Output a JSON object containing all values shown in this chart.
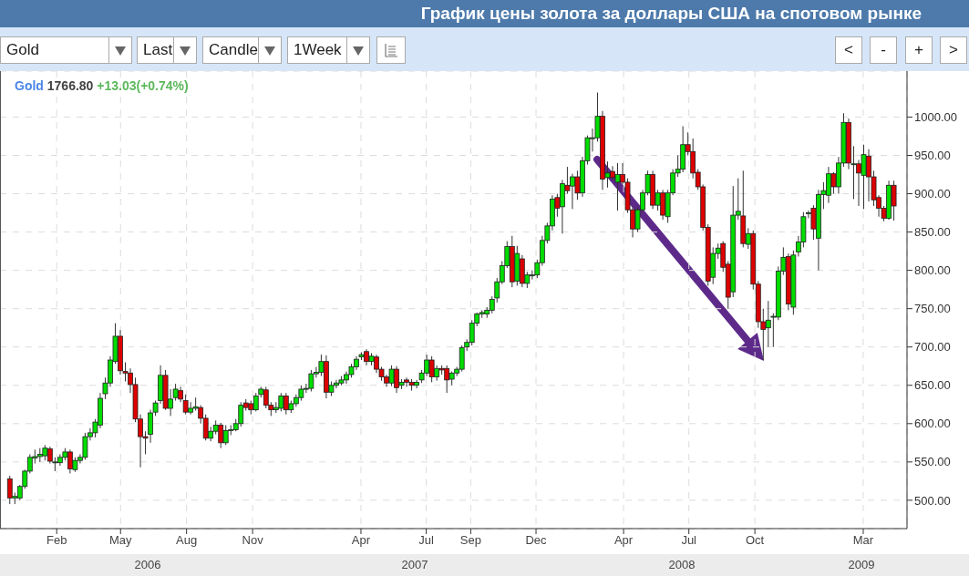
{
  "chart_data": {
    "type": "candlestick",
    "title": "График цены золота за доллары США на спотовом рынке",
    "annotations": [
      "Gold",
      "Last",
      "Candle",
      "1Week",
      "<",
      "-",
      "+",
      ">",
      "Gold",
      "1766.80",
      "+13.03(+0.74%)",
      "2006",
      "2007",
      "2008",
      "2009"
    ],
    "x": [
      "2005-11-28",
      "2005-12-05",
      "2005-12-12",
      "2005-12-19",
      "2005-12-26",
      "2006-01-02",
      "2006-01-09",
      "2006-01-16",
      "2006-01-23",
      "2006-01-30",
      "2006-02-06",
      "2006-02-13",
      "2006-02-20",
      "2006-02-27",
      "2006-03-06",
      "2006-03-13",
      "2006-03-20",
      "2006-03-27",
      "2006-04-03",
      "2006-04-10",
      "2006-04-17",
      "2006-04-24",
      "2006-05-01",
      "2006-05-08",
      "2006-05-15",
      "2006-05-22",
      "2006-05-29",
      "2006-06-05",
      "2006-06-12",
      "2006-06-19",
      "2006-06-26",
      "2006-07-03",
      "2006-07-10",
      "2006-07-17",
      "2006-07-24",
      "2006-07-31",
      "2006-08-07",
      "2006-08-14",
      "2006-08-21",
      "2006-08-28",
      "2006-09-04",
      "2006-09-11",
      "2006-09-18",
      "2006-09-25",
      "2006-10-02",
      "2006-10-09",
      "2006-10-16",
      "2006-10-23",
      "2006-10-30",
      "2006-11-06",
      "2006-11-13",
      "2006-11-20",
      "2006-11-27",
      "2006-12-04",
      "2006-12-11",
      "2006-12-18",
      "2006-12-25",
      "2007-01-01",
      "2007-01-08",
      "2007-01-15",
      "2007-01-22",
      "2007-01-29",
      "2007-02-05",
      "2007-02-12",
      "2007-02-19",
      "2007-02-26",
      "2007-03-05",
      "2007-03-12",
      "2007-03-19",
      "2007-03-26",
      "2007-04-02",
      "2007-04-09",
      "2007-04-16",
      "2007-04-23",
      "2007-04-30",
      "2007-05-07",
      "2007-05-14",
      "2007-05-21",
      "2007-05-28",
      "2007-06-04",
      "2007-06-11",
      "2007-06-18",
      "2007-06-25",
      "2007-07-02",
      "2007-07-09",
      "2007-07-16",
      "2007-07-23",
      "2007-07-30",
      "2007-08-06",
      "2007-08-13",
      "2007-08-20",
      "2007-08-27",
      "2007-09-03",
      "2007-09-10",
      "2007-09-17",
      "2007-09-24",
      "2007-10-01",
      "2007-10-08",
      "2007-10-15",
      "2007-10-22",
      "2007-10-29",
      "2007-11-05",
      "2007-11-12",
      "2007-11-19",
      "2007-11-26",
      "2007-12-03",
      "2007-12-10",
      "2007-12-17",
      "2007-12-24",
      "2007-12-31",
      "2008-01-07",
      "2008-01-14",
      "2008-01-21",
      "2008-01-28",
      "2008-02-04",
      "2008-02-11",
      "2008-02-18",
      "2008-02-25",
      "2008-03-03",
      "2008-03-10",
      "2008-03-17",
      "2008-03-24",
      "2008-03-31",
      "2008-04-07",
      "2008-04-14",
      "2008-04-21",
      "2008-04-28",
      "2008-05-05",
      "2008-05-12",
      "2008-05-19",
      "2008-05-26",
      "2008-06-02",
      "2008-06-09",
      "2008-06-16",
      "2008-06-23",
      "2008-06-30",
      "2008-07-07",
      "2008-07-14",
      "2008-07-21",
      "2008-07-28",
      "2008-08-04",
      "2008-08-11",
      "2008-08-18",
      "2008-08-25",
      "2008-09-01",
      "2008-09-08",
      "2008-09-15",
      "2008-09-22",
      "2008-09-29",
      "2008-10-06",
      "2008-10-13",
      "2008-10-20",
      "2008-10-27",
      "2008-11-03",
      "2008-11-10",
      "2008-11-17",
      "2008-11-24",
      "2008-12-01",
      "2008-12-08",
      "2008-12-15",
      "2008-12-22",
      "2008-12-29",
      "2009-01-05",
      "2009-01-12",
      "2009-01-19",
      "2009-01-26",
      "2009-02-02",
      "2009-02-09",
      "2009-02-16",
      "2009-02-23",
      "2009-03-02",
      "2009-03-09",
      "2009-03-16",
      "2009-03-23",
      "2009-03-30",
      "2009-04-06",
      "2009-04-13"
    ],
    "ohlc": [
      [
        528,
        532,
        495,
        503
      ],
      [
        503,
        510,
        495,
        505
      ],
      [
        503,
        520,
        500,
        518
      ],
      [
        518,
        540,
        515,
        538
      ],
      [
        538,
        560,
        535,
        556
      ],
      [
        555,
        566,
        548,
        557
      ],
      [
        557,
        568,
        550,
        560
      ],
      [
        558,
        572,
        552,
        568
      ],
      [
        567,
        570,
        548,
        551
      ],
      [
        549,
        556,
        538,
        550
      ],
      [
        549,
        560,
        545,
        556
      ],
      [
        556,
        568,
        552,
        563
      ],
      [
        563,
        566,
        535,
        541
      ],
      [
        540,
        556,
        537,
        552
      ],
      [
        552,
        560,
        548,
        556
      ],
      [
        556,
        588,
        553,
        583
      ],
      [
        583,
        594,
        578,
        588
      ],
      [
        588,
        606,
        582,
        602
      ],
      [
        598,
        640,
        594,
        633
      ],
      [
        639,
        660,
        632,
        653
      ],
      [
        653,
        688,
        648,
        683
      ],
      [
        681,
        731,
        678,
        714
      ],
      [
        714,
        722,
        664,
        669
      ],
      [
        668,
        680,
        655,
        666
      ],
      [
        666,
        672,
        640,
        651
      ],
      [
        651,
        660,
        602,
        606
      ],
      [
        606,
        612,
        543,
        583
      ],
      [
        583,
        590,
        560,
        581
      ],
      [
        586,
        618,
        575,
        614
      ],
      [
        615,
        630,
        610,
        627
      ],
      [
        630,
        676,
        626,
        663
      ],
      [
        663,
        670,
        618,
        620
      ],
      [
        620,
        645,
        610,
        632
      ],
      [
        634,
        652,
        630,
        645
      ],
      [
        643,
        648,
        628,
        632
      ],
      [
        630,
        638,
        612,
        615
      ],
      [
        615,
        628,
        612,
        620
      ],
      [
        620,
        634,
        617,
        622
      ],
      [
        621,
        624,
        600,
        607
      ],
      [
        607,
        612,
        578,
        581
      ],
      [
        581,
        596,
        577,
        590
      ],
      [
        590,
        604,
        586,
        598
      ],
      [
        598,
        601,
        568,
        575
      ],
      [
        575,
        598,
        572,
        591
      ],
      [
        591,
        598,
        585,
        592
      ],
      [
        592,
        606,
        590,
        600
      ],
      [
        600,
        628,
        596,
        624
      ],
      [
        627,
        632,
        617,
        621
      ],
      [
        626,
        630,
        612,
        618
      ],
      [
        618,
        640,
        616,
        636
      ],
      [
        638,
        648,
        634,
        645
      ],
      [
        644,
        648,
        620,
        624
      ],
      [
        624,
        628,
        610,
        618
      ],
      [
        618,
        628,
        614,
        621
      ],
      [
        620,
        640,
        616,
        636
      ],
      [
        636,
        640,
        612,
        618
      ],
      [
        618,
        630,
        614,
        626
      ],
      [
        626,
        638,
        622,
        634
      ],
      [
        634,
        650,
        630,
        645
      ],
      [
        645,
        652,
        640,
        646
      ],
      [
        646,
        670,
        642,
        665
      ],
      [
        665,
        674,
        660,
        667
      ],
      [
        667,
        690,
        662,
        681
      ],
      [
        681,
        689,
        633,
        641
      ],
      [
        641,
        655,
        636,
        650
      ],
      [
        650,
        657,
        646,
        653
      ],
      [
        653,
        662,
        650,
        657
      ],
      [
        657,
        668,
        652,
        664
      ],
      [
        664,
        678,
        660,
        674
      ],
      [
        674,
        688,
        670,
        684
      ],
      [
        687,
        693,
        683,
        690
      ],
      [
        694,
        697,
        676,
        681
      ],
      [
        681,
        692,
        676,
        688
      ],
      [
        687,
        690,
        666,
        671
      ],
      [
        671,
        674,
        656,
        661
      ],
      [
        661,
        664,
        648,
        653
      ],
      [
        653,
        676,
        649,
        671
      ],
      [
        671,
        675,
        640,
        647
      ],
      [
        650,
        658,
        645,
        654
      ],
      [
        657,
        660,
        648,
        654
      ],
      [
        654,
        658,
        643,
        650
      ],
      [
        650,
        657,
        646,
        654
      ],
      [
        657,
        670,
        653,
        666
      ],
      [
        666,
        690,
        662,
        683
      ],
      [
        683,
        688,
        654,
        661
      ],
      [
        661,
        676,
        656,
        672
      ],
      [
        672,
        676,
        664,
        670
      ],
      [
        672,
        676,
        640,
        657
      ],
      [
        658,
        668,
        650,
        666
      ],
      [
        666,
        674,
        662,
        671
      ],
      [
        671,
        702,
        668,
        699
      ],
      [
        700,
        710,
        695,
        706
      ],
      [
        706,
        735,
        702,
        731
      ],
      [
        731,
        745,
        727,
        743
      ],
      [
        743,
        748,
        738,
        745
      ],
      [
        743,
        752,
        738,
        748
      ],
      [
        748,
        766,
        744,
        762
      ],
      [
        764,
        790,
        758,
        785
      ],
      [
        785,
        812,
        782,
        806
      ],
      [
        806,
        838,
        803,
        831
      ],
      [
        831,
        845,
        778,
        785
      ],
      [
        786,
        832,
        780,
        822
      ],
      [
        815,
        820,
        778,
        783
      ],
      [
        783,
        798,
        777,
        794
      ],
      [
        794,
        800,
        788,
        794
      ],
      [
        794,
        814,
        790,
        810
      ],
      [
        810,
        845,
        806,
        839
      ],
      [
        839,
        862,
        835,
        858
      ],
      [
        858,
        898,
        852,
        893
      ],
      [
        895,
        900,
        870,
        881
      ],
      [
        883,
        918,
        848,
        913
      ],
      [
        911,
        935,
        900,
        904
      ],
      [
        910,
        926,
        880,
        922
      ],
      [
        922,
        930,
        892,
        901
      ],
      [
        901,
        948,
        896,
        943
      ],
      [
        943,
        976,
        938,
        973
      ],
      [
        973,
        985,
        955,
        973
      ],
      [
        973,
        1032,
        968,
        1001
      ],
      [
        1001,
        1008,
        905,
        919
      ],
      [
        921,
        942,
        908,
        927
      ],
      [
        929,
        936,
        918,
        921
      ],
      [
        915,
        940,
        878,
        925
      ],
      [
        925,
        940,
        912,
        915
      ],
      [
        915,
        920,
        875,
        879
      ],
      [
        879,
        882,
        843,
        854
      ],
      [
        854,
        883,
        850,
        879
      ],
      [
        879,
        905,
        875,
        901
      ],
      [
        901,
        930,
        898,
        925
      ],
      [
        925,
        930,
        880,
        885
      ],
      [
        885,
        905,
        878,
        901
      ],
      [
        901,
        905,
        866,
        872
      ],
      [
        870,
        905,
        862,
        901
      ],
      [
        901,
        932,
        898,
        927
      ],
      [
        927,
        950,
        922,
        932
      ],
      [
        932,
        988,
        928,
        964
      ],
      [
        964,
        980,
        950,
        955
      ],
      [
        955,
        972,
        920,
        927
      ],
      [
        928,
        932,
        905,
        909
      ],
      [
        909,
        912,
        852,
        856
      ],
      [
        856,
        860,
        780,
        786
      ],
      [
        791,
        830,
        782,
        822
      ],
      [
        822,
        835,
        815,
        829
      ],
      [
        835,
        838,
        798,
        804
      ],
      [
        808,
        812,
        750,
        765
      ],
      [
        772,
        910,
        765,
        872
      ],
      [
        872,
        920,
        866,
        877
      ],
      [
        871,
        930,
        830,
        835
      ],
      [
        834,
        855,
        828,
        848
      ],
      [
        848,
        852,
        775,
        782
      ],
      [
        782,
        786,
        725,
        733
      ],
      [
        733,
        750,
        683,
        723
      ],
      [
        725,
        760,
        700,
        735
      ],
      [
        739,
        744,
        700,
        740
      ],
      [
        739,
        805,
        735,
        799
      ],
      [
        799,
        830,
        794,
        817
      ],
      [
        818,
        822,
        748,
        756
      ],
      [
        752,
        826,
        742,
        820
      ],
      [
        824,
        845,
        818,
        837
      ],
      [
        837,
        876,
        830,
        870
      ],
      [
        874,
        878,
        868,
        875
      ],
      [
        881,
        885,
        840,
        854
      ],
      [
        842,
        905,
        800,
        899
      ],
      [
        899,
        915,
        880,
        904
      ],
      [
        898,
        935,
        888,
        926
      ],
      [
        926,
        928,
        900,
        909
      ],
      [
        909,
        948,
        900,
        940
      ],
      [
        940,
        1005,
        935,
        993
      ],
      [
        993,
        998,
        932,
        940
      ],
      [
        939,
        962,
        893,
        939
      ],
      [
        939,
        944,
        884,
        927
      ],
      [
        924,
        964,
        880,
        951
      ],
      [
        949,
        958,
        890,
        922
      ],
      [
        922,
        930,
        884,
        892
      ],
      [
        895,
        898,
        870,
        881
      ],
      [
        881,
        884,
        864,
        868
      ],
      [
        868,
        917,
        866,
        911
      ],
      [
        911,
        917,
        865,
        884
      ]
    ],
    "colors": [
      "#dd0000",
      "#00dd00",
      "#00dd00",
      "#00dd00",
      "#00dd00",
      "#00dd00",
      "#00dd00",
      "#00dd00",
      "#dd0000",
      "#00dd00",
      "#00dd00",
      "#00dd00",
      "#dd0000",
      "#00dd00",
      "#00dd00",
      "#00dd00",
      "#00dd00",
      "#00dd00",
      "#00dd00",
      "#00dd00",
      "#00dd00",
      "#00dd00",
      "#dd0000",
      "#dd0000",
      "#dd0000",
      "#dd0000",
      "#dd0000",
      "#dd0000",
      "#00dd00",
      "#00dd00",
      "#00dd00",
      "#dd0000",
      "#00dd00",
      "#00dd00",
      "#dd0000",
      "#dd0000",
      "#00dd00",
      "#00dd00",
      "#dd0000",
      "#dd0000",
      "#00dd00",
      "#00dd00",
      "#dd0000",
      "#00dd00",
      "#00dd00",
      "#00dd00",
      "#00dd00",
      "#dd0000",
      "#dd0000",
      "#00dd00",
      "#00dd00",
      "#dd0000",
      "#dd0000",
      "#00dd00",
      "#00dd00",
      "#dd0000",
      "#00dd00",
      "#00dd00",
      "#00dd00",
      "#00dd00",
      "#00dd00",
      "#00dd00",
      "#00dd00",
      "#dd0000",
      "#00dd00",
      "#00dd00",
      "#00dd00",
      "#00dd00",
      "#00dd00",
      "#00dd00",
      "#00dd00",
      "#dd0000",
      "#00dd00",
      "#dd0000",
      "#dd0000",
      "#dd0000",
      "#00dd00",
      "#dd0000",
      "#00dd00",
      "#dd0000",
      "#dd0000",
      "#00dd00",
      "#00dd00",
      "#00dd00",
      "#dd0000",
      "#00dd00",
      "#dd0000",
      "#dd0000",
      "#00dd00",
      "#00dd00",
      "#00dd00",
      "#00dd00",
      "#00dd00",
      "#00dd00",
      "#00dd00",
      "#00dd00",
      "#00dd00",
      "#00dd00",
      "#00dd00",
      "#00dd00",
      "#dd0000",
      "#00dd00",
      "#dd0000",
      "#00dd00",
      "#00dd00",
      "#00dd00",
      "#00dd00",
      "#00dd00",
      "#00dd00",
      "#dd0000",
      "#00dd00",
      "#dd0000",
      "#00dd00",
      "#dd0000",
      "#00dd00",
      "#00dd00",
      "#00dd00",
      "#00dd00",
      "#dd0000",
      "#00dd00",
      "#dd0000",
      "#00dd00",
      "#dd0000",
      "#dd0000",
      "#dd0000",
      "#00dd00",
      "#00dd00",
      "#00dd00",
      "#dd0000",
      "#00dd00",
      "#dd0000",
      "#00dd00",
      "#00dd00",
      "#00dd00",
      "#00dd00",
      "#dd0000",
      "#dd0000",
      "#dd0000",
      "#dd0000",
      "#dd0000",
      "#00dd00",
      "#00dd00",
      "#dd0000",
      "#dd0000",
      "#00dd00",
      "#00dd00",
      "#dd0000",
      "#00dd00",
      "#dd0000",
      "#dd0000",
      "#dd0000",
      "#00dd00",
      "#00dd00",
      "#00dd00",
      "#00dd00",
      "#dd0000",
      "#00dd00",
      "#00dd00",
      "#00dd00",
      "#00dd00",
      "#dd0000",
      "#00dd00",
      "#00dd00",
      "#00dd00",
      "#dd0000",
      "#00dd00",
      "#00dd00",
      "#dd0000",
      "#00dd00",
      "#dd0000",
      "#00dd00",
      "#dd0000",
      "#dd0000",
      "#dd0000",
      "#dd0000",
      "#00dd00",
      "#dd0000"
    ],
    "xlim": [
      "2005-11-14",
      "2009-05-01"
    ],
    "xticks": [
      {
        "value": "2006-02-01",
        "label": "Feb"
      },
      {
        "value": "2006-05-01",
        "label": "May"
      },
      {
        "value": "2006-08-01",
        "label": "Aug"
      },
      {
        "value": "2006-11-01",
        "label": "Nov"
      },
      {
        "value": "2007-04-01",
        "label": "Apr"
      },
      {
        "value": "2007-07-01",
        "label": "Jul"
      },
      {
        "value": "2007-09-01",
        "label": "Sep"
      },
      {
        "value": "2007-12-01",
        "label": "Dec"
      },
      {
        "value": "2008-04-01",
        "label": "Apr"
      },
      {
        "value": "2008-07-01",
        "label": "Jul"
      },
      {
        "value": "2008-10-01",
        "label": "Oct"
      },
      {
        "value": "2009-03-01",
        "label": "Mar"
      }
    ],
    "ylim": [
      463,
      1060
    ],
    "yticks": [
      {
        "value": 500,
        "label": "500.00"
      },
      {
        "value": 550,
        "label": "550.00"
      },
      {
        "value": 600,
        "label": "600.00"
      },
      {
        "value": 650,
        "label": "650.00"
      },
      {
        "value": 700,
        "label": "700.00"
      },
      {
        "value": 750,
        "label": "750.00"
      },
      {
        "value": 800,
        "label": "800.00"
      },
      {
        "value": 850,
        "label": "850.00"
      },
      {
        "value": 900,
        "label": "900.00"
      },
      {
        "value": 950,
        "label": "950.00"
      },
      {
        "value": 1000,
        "label": "1000.00"
      }
    ],
    "grid": true
  }
}
